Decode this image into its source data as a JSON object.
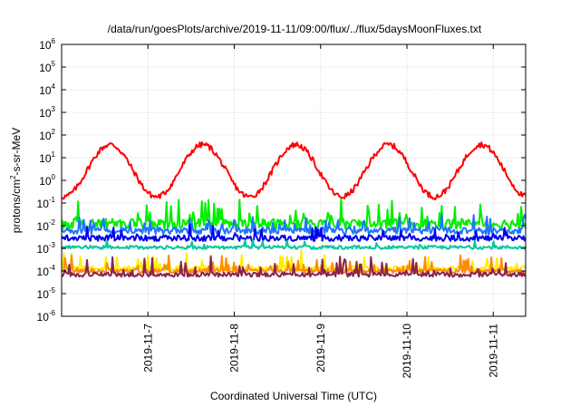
{
  "chart_data": {
    "type": "line",
    "title": "/data/run/goesPlots/archive/2019-11-11/09:00/flux/../flux/5daysMoonFluxes.txt",
    "xlabel": "Coordinated Universal Time (UTC)",
    "ylabel": {
      "prefix": "protons/cm",
      "superscript": "2",
      "suffix": "-s-sr-MeV"
    },
    "y_scale": "log",
    "ylim_exponents": [
      -6,
      6
    ],
    "y_ticks": [
      {
        "base": "10",
        "exp": "6"
      },
      {
        "base": "10",
        "exp": "5"
      },
      {
        "base": "10",
        "exp": "4"
      },
      {
        "base": "10",
        "exp": "3"
      },
      {
        "base": "10",
        "exp": "2"
      },
      {
        "base": "10",
        "exp": "1"
      },
      {
        "base": "10",
        "exp": "0"
      },
      {
        "base": "10",
        "exp": "-1"
      },
      {
        "base": "10",
        "exp": "-2"
      },
      {
        "base": "10",
        "exp": "-3"
      },
      {
        "base": "10",
        "exp": "-4"
      },
      {
        "base": "10",
        "exp": "-5"
      },
      {
        "base": "10",
        "exp": "-6"
      }
    ],
    "xlim": [
      "2019-11-06 00:00",
      "2019-11-11 09:00"
    ],
    "x_ticks": [
      "2019-11-7",
      "2019-11-8",
      "2019-11-9",
      "2019-11-10",
      "2019-11-11"
    ],
    "grid": true,
    "series": [
      {
        "color": "#ff0000",
        "level": 0.3,
        "pattern": "diurnal",
        "amp": 2.3,
        "noise": 0.25
      },
      {
        "color": "#00ee00",
        "level": 0.012,
        "pattern": "spiky",
        "amp": 1.0,
        "noise": 0.45
      },
      {
        "color": "#1f75fe",
        "level": 0.006,
        "pattern": "spiky",
        "amp": 0.6,
        "noise": 0.3
      },
      {
        "color": "#0000ee",
        "level": 0.0028,
        "pattern": "spiky",
        "amp": 0.5,
        "noise": 0.25
      },
      {
        "color": "#00c8a0",
        "level": 0.0011,
        "pattern": "flat",
        "amp": 0.4,
        "noise": 0.15
      },
      {
        "color": "#ffee00",
        "level": 0.00013,
        "pattern": "spiky",
        "amp": 0.8,
        "noise": 0.2
      },
      {
        "color": "#ff8c00",
        "level": 0.0001,
        "pattern": "spiky",
        "amp": 0.7,
        "noise": 0.2
      },
      {
        "color": "#8b2252",
        "level": 7e-05,
        "pattern": "spiky",
        "amp": 0.8,
        "noise": 0.2
      }
    ]
  }
}
